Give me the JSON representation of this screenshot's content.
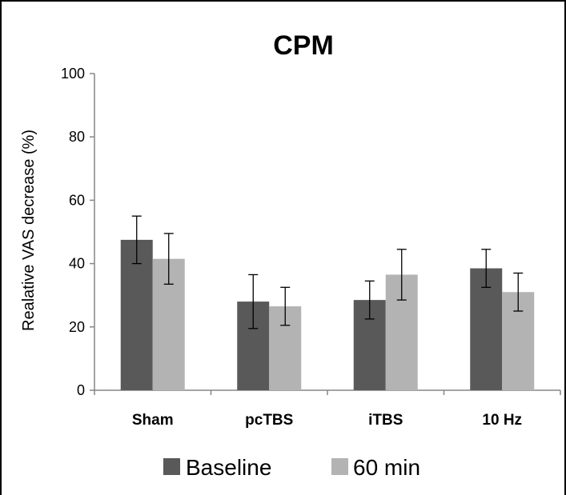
{
  "chart_data": {
    "type": "bar",
    "title": "CPM",
    "xlabel": "",
    "ylabel": "Realative VAS decrease (%)",
    "ylim": [
      0,
      100
    ],
    "yticks": [
      0,
      20,
      40,
      60,
      80,
      100
    ],
    "categories": [
      "Sham",
      "pcTBS",
      "iTBS",
      "10 Hz"
    ],
    "series": [
      {
        "name": "Baseline",
        "color": "#595959",
        "values": [
          47.5,
          28,
          28.5,
          38.5
        ],
        "errors": [
          7.5,
          8.5,
          6,
          6
        ]
      },
      {
        "name": "60 min",
        "color": "#b3b3b3",
        "values": [
          41.5,
          26.5,
          36.5,
          31
        ],
        "errors": [
          8,
          6,
          8,
          6
        ]
      }
    ],
    "grid": false,
    "legend": "bottom"
  }
}
